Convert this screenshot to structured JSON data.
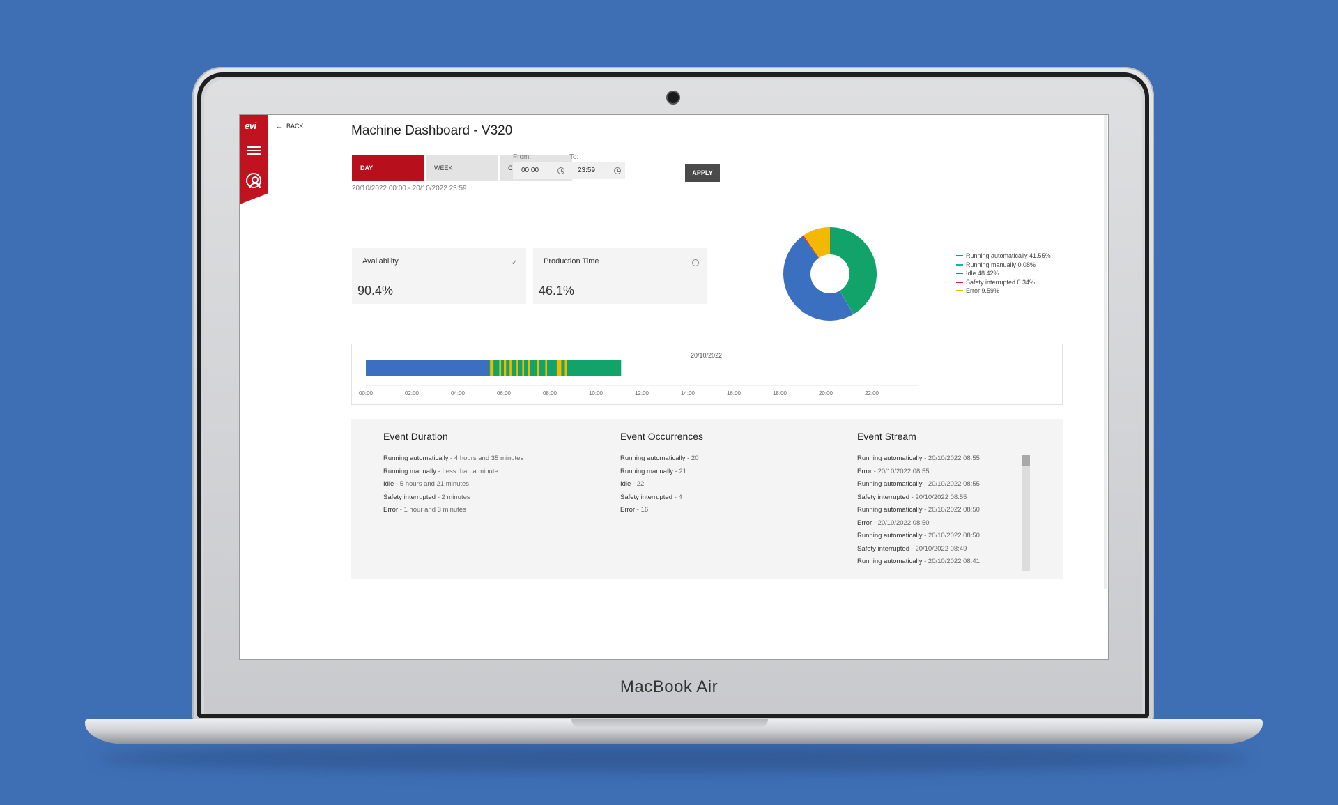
{
  "device": {
    "brand": "MacBook Air"
  },
  "app": {
    "logo": "evi",
    "back_label": "BACK",
    "title": "Machine Dashboard - V320"
  },
  "range": {
    "tabs": [
      {
        "label": "DAY",
        "active": true
      },
      {
        "label": "WEEK",
        "active": false
      },
      {
        "label": "CUSTOM",
        "active": false
      }
    ],
    "from_label": "From:",
    "from_value": "00:00",
    "to_label": "To:",
    "to_value": "23:59",
    "apply_label": "APPLY",
    "date_range": "20/10/2022 00:00 - 20/10/2022 23:59"
  },
  "kpis": {
    "availability": {
      "label": "Availability",
      "value": "90.4%",
      "icon": "check-icon"
    },
    "production_time": {
      "label": "Production Time",
      "value": "46.1%",
      "icon": "clock-icon"
    }
  },
  "donut": {
    "slices": [
      {
        "label": "Running automatically 41.55%",
        "value": 41.55,
        "color": "#11a36a"
      },
      {
        "label": "Running manually 0.08%",
        "value": 0.08,
        "color": "#17b2a8"
      },
      {
        "label": "Idle 48.42%",
        "value": 48.42,
        "color": "#3b6fbf"
      },
      {
        "label": "Safety interrupted 0.34%",
        "value": 0.34,
        "color": "#d9282f"
      },
      {
        "label": "Error 9.59%",
        "value": 9.59,
        "color": "#f5b800"
      }
    ]
  },
  "timeline": {
    "date_label": "20/10/2022",
    "ticks": [
      "00:00",
      "02:00",
      "04:00",
      "06:00",
      "08:00",
      "10:00",
      "12:00",
      "14:00",
      "16:00",
      "18:00",
      "20:00",
      "22:00"
    ],
    "segments": [
      {
        "state": "idle",
        "start_h": 0.0,
        "end_h": 5.35,
        "color": "#3b6fbf"
      },
      {
        "state": "running",
        "start_h": 5.35,
        "end_h": 11.1,
        "color": "#11a36a"
      },
      {
        "state": "error",
        "start_h": 5.4,
        "end_h": 5.55,
        "color": "#f5b800"
      },
      {
        "state": "error",
        "start_h": 5.8,
        "end_h": 5.88,
        "color": "#f5b800"
      },
      {
        "state": "error",
        "start_h": 6.0,
        "end_h": 6.1,
        "color": "#f5b800"
      },
      {
        "state": "error",
        "start_h": 6.25,
        "end_h": 6.33,
        "color": "#f5b800"
      },
      {
        "state": "error",
        "start_h": 6.55,
        "end_h": 6.62,
        "color": "#f5b800"
      },
      {
        "state": "error",
        "start_h": 6.8,
        "end_h": 6.88,
        "color": "#f5b800"
      },
      {
        "state": "error",
        "start_h": 7.05,
        "end_h": 7.12,
        "color": "#f5b800"
      },
      {
        "state": "error",
        "start_h": 7.45,
        "end_h": 7.53,
        "color": "#f5b800"
      },
      {
        "state": "error",
        "start_h": 7.8,
        "end_h": 7.88,
        "color": "#f5b800"
      },
      {
        "state": "error",
        "start_h": 8.3,
        "end_h": 8.5,
        "color": "#f5b800"
      },
      {
        "state": "error",
        "start_h": 8.65,
        "end_h": 8.73,
        "color": "#f5b800"
      }
    ]
  },
  "events": {
    "duration": {
      "title": "Event Duration",
      "items": [
        {
          "name": "Running automatically",
          "value": " - 4 hours and 35 minutes"
        },
        {
          "name": "Running manually",
          "value": " - Less than a minute"
        },
        {
          "name": "Idle",
          "value": " - 5 hours and 21 minutes"
        },
        {
          "name": "Safety interrupted",
          "value": " - 2 minutes"
        },
        {
          "name": "Error",
          "value": " - 1 hour and 3 minutes"
        }
      ]
    },
    "occurrences": {
      "title": "Event Occurrences",
      "items": [
        {
          "name": "Running automatically",
          "value": " - 20"
        },
        {
          "name": "Running manually",
          "value": " - 21"
        },
        {
          "name": "Idle",
          "value": " - 22"
        },
        {
          "name": "Safety interrupted",
          "value": " - 4"
        },
        {
          "name": "Error",
          "value": " - 16"
        }
      ]
    },
    "stream": {
      "title": "Event Stream",
      "items": [
        {
          "name": "Running automatically",
          "value": " - 20/10/2022 08:55"
        },
        {
          "name": "Error",
          "value": " - 20/10/2022 08:55"
        },
        {
          "name": "Running automatically",
          "value": " - 20/10/2022 08:55"
        },
        {
          "name": "Safety interrupted",
          "value": " - 20/10/2022 08:55"
        },
        {
          "name": "Running automatically",
          "value": " - 20/10/2022 08:50"
        },
        {
          "name": "Error",
          "value": " - 20/10/2022 08:50"
        },
        {
          "name": "Running automatically",
          "value": " - 20/10/2022 08:50"
        },
        {
          "name": "Safety interrupted",
          "value": " - 20/10/2022 08:49"
        },
        {
          "name": "Running automatically",
          "value": " - 20/10/2022 08:41"
        }
      ]
    }
  }
}
